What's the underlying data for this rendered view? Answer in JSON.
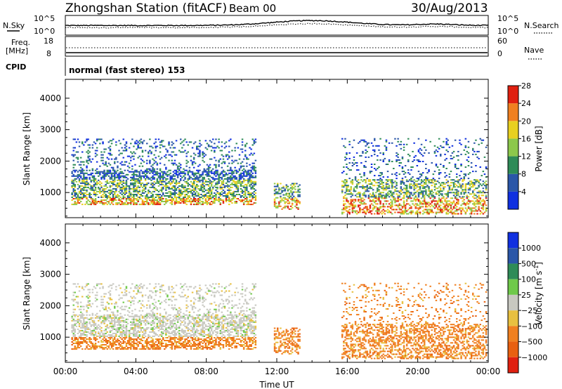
{
  "header": {
    "station": "Zhongshan Station (fitACF)",
    "beam": "Beam 00",
    "date": "30/Aug/2013"
  },
  "top_panel": {
    "left_top": "N.Sky",
    "right_top": "N.Search",
    "tick_hi": "10^5",
    "tick_lo": "10^0",
    "left_mid1": "Freq.",
    "left_mid2": "[MHz]",
    "freq_hi": "18",
    "freq_lo": "8",
    "nave_hi": "60",
    "nave_lo": "0",
    "right_mid": "Nave",
    "cpid_label": "CPID",
    "cpid_text": "normal (fast stereo) 153"
  },
  "chart_data": [
    {
      "type": "heatmap",
      "name": "power",
      "ylabel": "Slant Range [km]",
      "yticks": [
        "1000",
        "2000",
        "3000",
        "4000"
      ],
      "ylim": [
        200,
        4600
      ],
      "colorbar_label": "Power [dB]",
      "colorbar_ticks": [
        "4",
        "8",
        "12",
        "16",
        "20",
        "24",
        "28"
      ],
      "colors": [
        "#1030e0",
        "#2a56a8",
        "#2e8b57",
        "#8cc84b",
        "#e8d020",
        "#f08020",
        "#e02010"
      ],
      "echo_regions": [
        {
          "t_start": "00:20",
          "t_end": "10:50",
          "r_start": 600,
          "r_end": 2700
        },
        {
          "t_start": "11:50",
          "t_end": "13:20",
          "r_start": 450,
          "r_end": 1300
        },
        {
          "t_start": "15:40",
          "t_end": "23:50",
          "r_start": 300,
          "r_end": 2700
        }
      ]
    },
    {
      "type": "heatmap",
      "name": "velocity",
      "ylabel": "Slant Range [km]",
      "yticks": [
        "1000",
        "2000",
        "3000",
        "4000"
      ],
      "ylim": [
        200,
        4600
      ],
      "colorbar_label": "Velocity [m s",
      "colorbar_label_sup": "-1",
      "colorbar_label_end": "]",
      "colorbar_ticks": [
        "1000",
        "500",
        "100",
        "25",
        "−25",
        "−100",
        "−500",
        "−1000"
      ],
      "colors": [
        "#1030e0",
        "#2a56a8",
        "#2e8b57",
        "#6fc94a",
        "#c8c8c0",
        "#e8c040",
        "#f08020",
        "#e86010",
        "#e02010"
      ],
      "xlabel": "Time UT",
      "xticks": [
        "00:00",
        "04:00",
        "08:00",
        "12:00",
        "16:00",
        "20:00",
        "00:00"
      ]
    }
  ]
}
